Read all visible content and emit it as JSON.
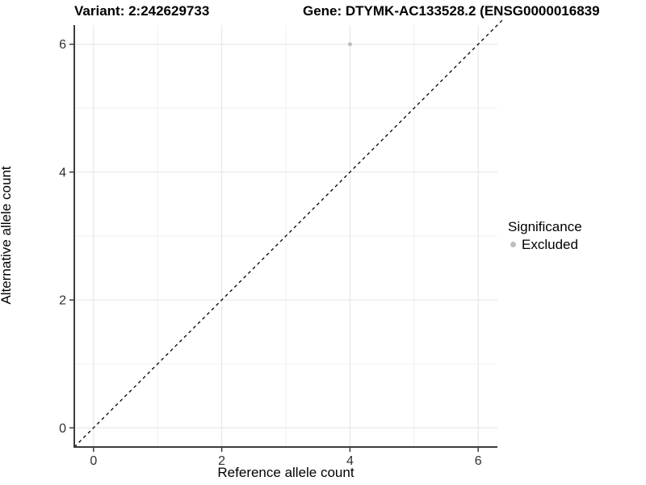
{
  "chart_data": {
    "type": "scatter",
    "titles": {
      "left": "Variant: 2:242629733",
      "right": "Gene: DTYMK-AC133528.2 (ENSG0000016839"
    },
    "xlabel": "Reference allele count",
    "ylabel": "Alternative allele count",
    "xlim": [
      -0.3,
      6.3
    ],
    "ylim": [
      -0.3,
      6.3
    ],
    "x_ticks": [
      0,
      2,
      4,
      6
    ],
    "y_ticks": [
      0,
      2,
      4,
      6
    ],
    "x_minor_ticks": [
      1,
      3,
      5
    ],
    "y_minor_ticks": [
      1,
      3,
      5
    ],
    "grid": "major+minor",
    "series": [
      {
        "name": "Excluded",
        "color": "#bdbdbd",
        "points": [
          [
            4,
            6
          ]
        ]
      }
    ],
    "reference_line": {
      "type": "identity y=x",
      "style": "dashed",
      "color": "#000000"
    },
    "legend": {
      "position": "right",
      "title": "Significance",
      "entries": [
        {
          "label": "Excluded",
          "color": "#bdbdbd",
          "marker": "circle"
        }
      ]
    },
    "colors": {
      "background": "#ffffff",
      "grid_major": "#e3e3e3",
      "grid_minor": "#f0f0f0",
      "axis_line": "#3c3c3c",
      "tick_label": "#303030",
      "point": "#bdbdbd"
    }
  }
}
